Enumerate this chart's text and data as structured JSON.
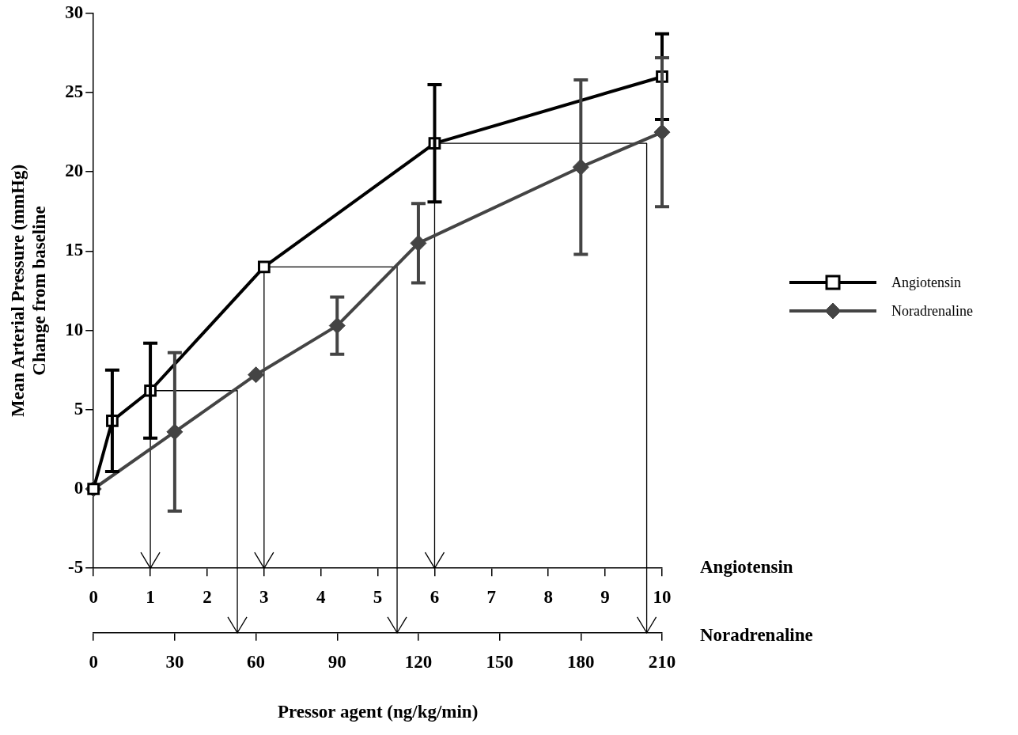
{
  "chart_data": {
    "type": "line",
    "ylabel": "Mean Arterial Pressure (mmHg)\nChange from baseline",
    "xlabel": "Pressor agent (ng/kg/min)",
    "annotations": [
      "Angiotensin",
      "Noradrenaline"
    ],
    "xlim": [
      0,
      10
    ],
    "xticks": [
      0,
      1,
      2,
      3,
      4,
      5,
      6,
      7,
      8,
      9,
      10
    ],
    "x2lim": [
      0,
      210
    ],
    "x2ticks": [
      0,
      30,
      60,
      90,
      120,
      150,
      180,
      210
    ],
    "ylim": [
      -5,
      30
    ],
    "yticks": [
      -5,
      0,
      5,
      10,
      15,
      20,
      25,
      30
    ],
    "grid": false,
    "legend": "right",
    "series": [
      {
        "name": "Angiotensin",
        "color": "#000000",
        "marker": "square",
        "x": [
          0,
          0.33,
          1,
          3,
          6,
          10
        ],
        "values": [
          0,
          4.3,
          6.2,
          14.0,
          21.8,
          26.0
        ],
        "errors": [
          null,
          3.2,
          3.0,
          null,
          3.7,
          2.7
        ]
      },
      {
        "name": "Noradrenaline",
        "color": "#444444",
        "marker": "diamond",
        "axis": "x2",
        "x": [
          0,
          30,
          60,
          90,
          120,
          180,
          210
        ],
        "values": [
          0,
          3.6,
          7.2,
          10.3,
          15.5,
          20.3,
          22.5
        ],
        "errors": [
          null,
          5.0,
          null,
          1.8,
          2.5,
          5.5,
          4.7
        ]
      },
      {
        "color": "#000000",
        "marker": "none",
        "x": [
          1,
          1,
          2.53,
          2.53
        ],
        "values": [
          -5,
          6.2,
          6.2,
          -5
        ]
      },
      {
        "color": "#000000",
        "marker": "none",
        "x": [
          3,
          3,
          5.34,
          5.34
        ],
        "values": [
          -5,
          14.0,
          14.0,
          -5
        ]
      },
      {
        "color": "#000000",
        "marker": "none",
        "x": [
          6,
          6,
          9.73,
          9.73
        ],
        "values": [
          -5,
          21.8,
          21.8,
          -5
        ]
      }
    ]
  }
}
